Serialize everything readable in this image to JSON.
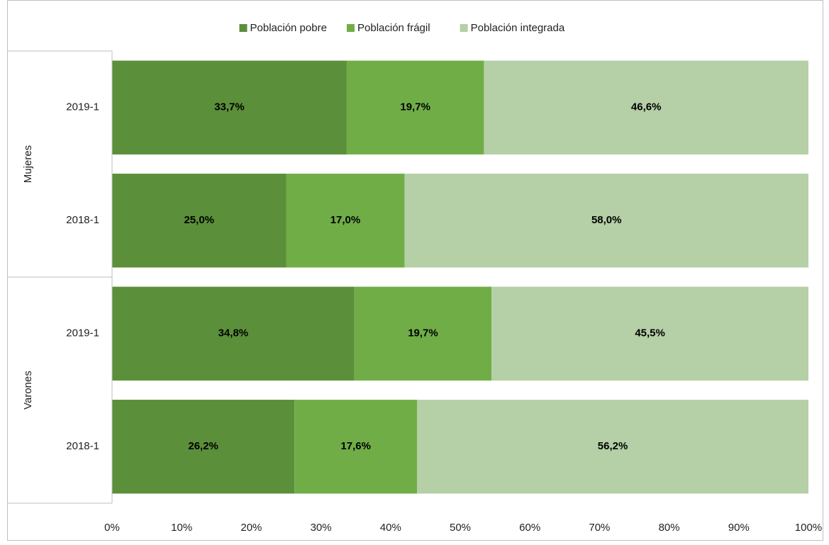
{
  "chart_data": {
    "type": "stacked-barh",
    "groups": [
      {
        "name": "Mujeres",
        "categories": [
          "2019-1",
          "2018-1"
        ]
      },
      {
        "name": "Varones",
        "categories": [
          "2019-1",
          "2018-1"
        ]
      }
    ],
    "series": [
      {
        "name": "Población pobre",
        "color": "#5b8f3a",
        "values": [
          33.7,
          25.0,
          34.8,
          26.2
        ],
        "value_labels": [
          "33,7%",
          "25,0%",
          "34,8%",
          "26,2%"
        ]
      },
      {
        "name": "Población frágil",
        "color": "#70ad47",
        "values": [
          19.7,
          17.0,
          19.7,
          17.6
        ],
        "value_labels": [
          "19,7%",
          "17,0%",
          "19,7%",
          "17,6%"
        ]
      },
      {
        "name": "Población integrada",
        "color": "#b5cfa6",
        "values": [
          46.6,
          58.0,
          45.5,
          56.2
        ],
        "value_labels": [
          "46,6%",
          "58,0%",
          "45,5%",
          "56,2%"
        ]
      }
    ],
    "xlim": [
      0,
      100
    ],
    "xticks": [
      {
        "value": 0,
        "label": "0%"
      },
      {
        "value": 10,
        "label": "10%"
      },
      {
        "value": 20,
        "label": "20%"
      },
      {
        "value": 30,
        "label": "30%"
      },
      {
        "value": 40,
        "label": "40%"
      },
      {
        "value": 50,
        "label": "50%"
      },
      {
        "value": 60,
        "label": "60%"
      },
      {
        "value": 70,
        "label": "70%"
      },
      {
        "value": 80,
        "label": "80%"
      },
      {
        "value": 90,
        "label": "90%"
      },
      {
        "value": 100,
        "label": "100%"
      }
    ],
    "legend": "top"
  }
}
